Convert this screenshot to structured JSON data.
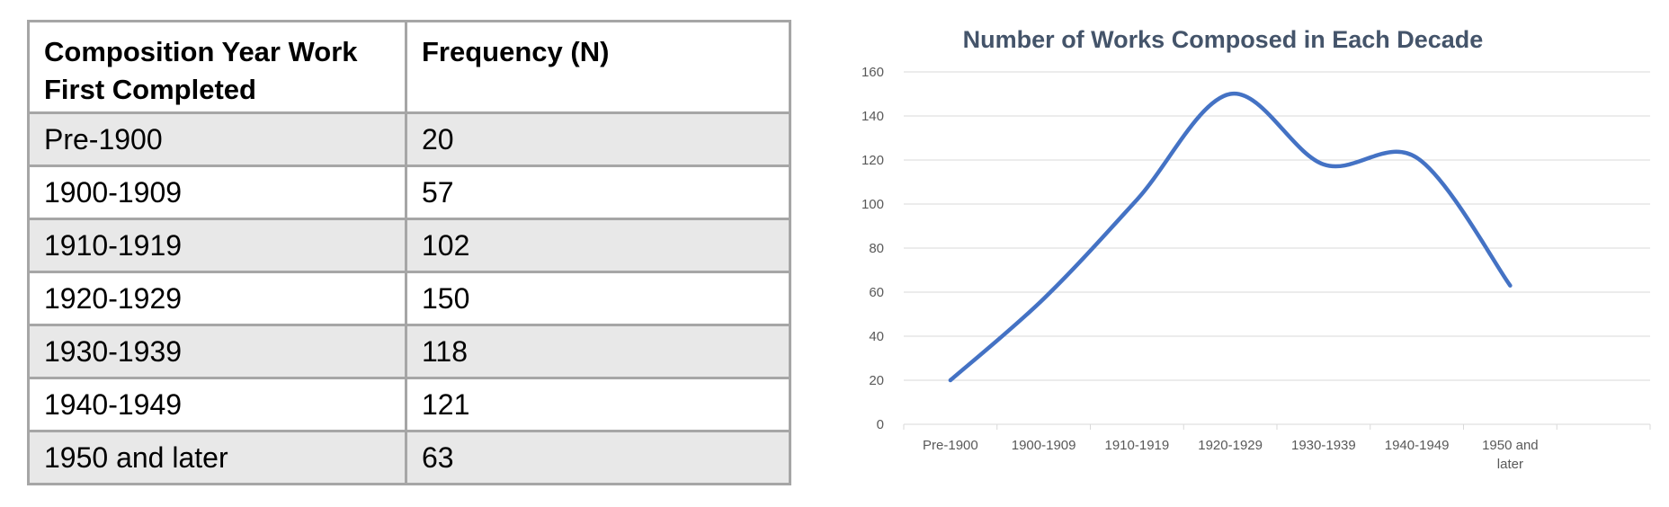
{
  "table": {
    "headers": [
      "Composition Year Work First Completed",
      "Frequency (N)"
    ],
    "rows": [
      {
        "period": "Pre-1900",
        "frequency": "20"
      },
      {
        "period": "1900-1909",
        "frequency": "57"
      },
      {
        "period": "1910-1919",
        "frequency": "102"
      },
      {
        "period": "1920-1929",
        "frequency": "150"
      },
      {
        "period": "1930-1939",
        "frequency": "118"
      },
      {
        "period": "1940-1949",
        "frequency": "121"
      },
      {
        "period": "1950 and later",
        "frequency": "63"
      }
    ]
  },
  "chart_data": {
    "type": "line",
    "title": "Number of Works Composed in Each Decade",
    "xlabel": "",
    "ylabel": "",
    "categories": [
      "Pre-1900",
      "1900-1909",
      "1910-1919",
      "1920-1929",
      "1930-1939",
      "1940-1949",
      "1950 and later"
    ],
    "category_tick_lines": [
      [
        "Pre-1900"
      ],
      [
        "1900-1909"
      ],
      [
        "1910-1919"
      ],
      [
        "1920-1929"
      ],
      [
        "1930-1939"
      ],
      [
        "1940-1949"
      ],
      [
        "1950 and",
        "later"
      ]
    ],
    "series": [
      {
        "values": [
          20,
          57,
          102,
          150,
          118,
          121,
          63
        ],
        "color": "#4472c4"
      }
    ],
    "ylim": [
      0,
      160
    ],
    "yticks": [
      0,
      20,
      40,
      60,
      80,
      100,
      120,
      140,
      160
    ],
    "smooth": true,
    "grid": true,
    "gridColor": "#d9d9d9",
    "legend": "none"
  }
}
